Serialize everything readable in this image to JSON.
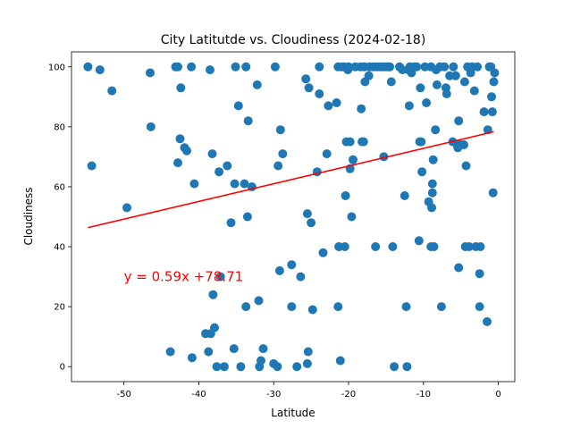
{
  "chart_data": {
    "type": "scatter",
    "title": "City Latitutde vs. Cloudiness (2024-02-18)",
    "xlabel": "Latitude",
    "ylabel": "Cloudiness",
    "xlim": [
      -57,
      2.2
    ],
    "ylim": [
      -5,
      105
    ],
    "xticks": [
      -50,
      -40,
      -30,
      -20,
      -10,
      0
    ],
    "yticks": [
      0,
      20,
      40,
      60,
      80,
      100
    ],
    "grid": false,
    "point_color": "#1f77b4",
    "regression": {
      "equation": "y = 0.59x +78.71",
      "slope": 0.59,
      "intercept": 78.71,
      "x_range": [
        -54.8,
        -0.6
      ],
      "color": "#ff0000",
      "label_pos": [
        -50,
        30
      ]
    },
    "points": [
      [
        -54.8,
        100
      ],
      [
        -54.3,
        67
      ],
      [
        -53.2,
        99
      ],
      [
        -51.6,
        92
      ],
      [
        -49.6,
        53
      ],
      [
        -46.5,
        98
      ],
      [
        -46.4,
        80
      ],
      [
        -43.8,
        5
      ],
      [
        -43.1,
        100
      ],
      [
        -42.8,
        68
      ],
      [
        -42.8,
        100
      ],
      [
        -42.5,
        76
      ],
      [
        -42.4,
        93
      ],
      [
        -41.9,
        73
      ],
      [
        -41.6,
        72
      ],
      [
        -41.0,
        100
      ],
      [
        -40.9,
        3
      ],
      [
        -40.6,
        61
      ],
      [
        -39.1,
        11
      ],
      [
        -38.7,
        5
      ],
      [
        -38.5,
        99
      ],
      [
        -38.4,
        11
      ],
      [
        -38.2,
        71
      ],
      [
        -38.1,
        24
      ],
      [
        -37.9,
        13
      ],
      [
        -37.6,
        0
      ],
      [
        -37.3,
        65
      ],
      [
        -37.1,
        30
      ],
      [
        -36.6,
        0
      ],
      [
        -36.2,
        67
      ],
      [
        -35.7,
        48
      ],
      [
        -35.3,
        6
      ],
      [
        -35.2,
        61
      ],
      [
        -35.1,
        100
      ],
      [
        -34.7,
        87
      ],
      [
        -34.4,
        0
      ],
      [
        -33.9,
        61
      ],
      [
        -33.7,
        100
      ],
      [
        -33.7,
        20
      ],
      [
        -33.5,
        50
      ],
      [
        -33.4,
        82
      ],
      [
        -32.9,
        60
      ],
      [
        -32.2,
        94
      ],
      [
        -32.0,
        22
      ],
      [
        -31.9,
        0
      ],
      [
        -31.7,
        2
      ],
      [
        -31.4,
        6
      ],
      [
        -30.0,
        1
      ],
      [
        -29.8,
        100
      ],
      [
        -29.5,
        0
      ],
      [
        -29.4,
        67
      ],
      [
        -29.2,
        32
      ],
      [
        -29.1,
        79
      ],
      [
        -28.8,
        71
      ],
      [
        -27.6,
        20
      ],
      [
        -27.6,
        34
      ],
      [
        -26.9,
        0
      ],
      [
        -26.4,
        30
      ],
      [
        -25.7,
        96
      ],
      [
        -25.5,
        51
      ],
      [
        -25.5,
        1
      ],
      [
        -25.4,
        5
      ],
      [
        -25.3,
        93
      ],
      [
        -25.0,
        48
      ],
      [
        -24.8,
        19
      ],
      [
        -24.2,
        65
      ],
      [
        -23.9,
        91
      ],
      [
        -23.9,
        100
      ],
      [
        -23.4,
        38
      ],
      [
        -22.9,
        71
      ],
      [
        -22.7,
        87
      ],
      [
        -21.6,
        88
      ],
      [
        -21.4,
        20
      ],
      [
        -21.4,
        100
      ],
      [
        -21.3,
        40
      ],
      [
        -21.1,
        2
      ],
      [
        -20.9,
        100
      ],
      [
        -20.6,
        100
      ],
      [
        -20.5,
        40
      ],
      [
        -20.4,
        57
      ],
      [
        -20.3,
        75
      ],
      [
        -20.1,
        99
      ],
      [
        -20.0,
        100
      ],
      [
        -19.8,
        75
      ],
      [
        -19.8,
        66
      ],
      [
        -19.6,
        50
      ],
      [
        -19.4,
        69
      ],
      [
        -19.1,
        100
      ],
      [
        -18.4,
        100
      ],
      [
        -18.3,
        86
      ],
      [
        -18.2,
        75
      ],
      [
        -18.0,
        75
      ],
      [
        -17.9,
        100
      ],
      [
        -17.8,
        95
      ],
      [
        -17.3,
        97
      ],
      [
        -17.2,
        100
      ],
      [
        -16.7,
        100
      ],
      [
        -16.4,
        40
      ],
      [
        -16.2,
        100
      ],
      [
        -15.7,
        100
      ],
      [
        -15.4,
        100
      ],
      [
        -15.3,
        70
      ],
      [
        -15.1,
        100
      ],
      [
        -14.8,
        100
      ],
      [
        -14.5,
        100
      ],
      [
        -14.3,
        95
      ],
      [
        -14.1,
        40
      ],
      [
        -13.9,
        0
      ],
      [
        -13.2,
        100
      ],
      [
        -12.8,
        99
      ],
      [
        -12.5,
        57
      ],
      [
        -12.3,
        20
      ],
      [
        -12.2,
        0
      ],
      [
        -12.0,
        99
      ],
      [
        -11.9,
        87
      ],
      [
        -11.8,
        100
      ],
      [
        -11.6,
        98
      ],
      [
        -11.2,
        100
      ],
      [
        -10.9,
        100
      ],
      [
        -10.6,
        42
      ],
      [
        -10.5,
        75
      ],
      [
        -10.4,
        93
      ],
      [
        -10.3,
        75
      ],
      [
        -10.2,
        65
      ],
      [
        -9.8,
        100
      ],
      [
        -9.6,
        88
      ],
      [
        -9.3,
        55
      ],
      [
        -9.0,
        100
      ],
      [
        -9.0,
        40
      ],
      [
        -8.9,
        53
      ],
      [
        -8.8,
        58
      ],
      [
        -8.8,
        61
      ],
      [
        -8.7,
        69
      ],
      [
        -8.6,
        40
      ],
      [
        -8.4,
        79
      ],
      [
        -8.3,
        99
      ],
      [
        -8.2,
        94
      ],
      [
        -7.8,
        100
      ],
      [
        -7.6,
        20
      ],
      [
        -7.2,
        100
      ],
      [
        -7.0,
        93
      ],
      [
        -6.9,
        91
      ],
      [
        -6.5,
        97
      ],
      [
        -6.1,
        75
      ],
      [
        -6.0,
        100
      ],
      [
        -5.7,
        97
      ],
      [
        -5.5,
        74
      ],
      [
        -5.4,
        73
      ],
      [
        -5.3,
        33
      ],
      [
        -5.3,
        82
      ],
      [
        -5.0,
        74
      ],
      [
        -4.6,
        74
      ],
      [
        -4.5,
        95
      ],
      [
        -4.4,
        40
      ],
      [
        -4.3,
        67
      ],
      [
        -4.1,
        100
      ],
      [
        -3.9,
        40
      ],
      [
        -3.7,
        98
      ],
      [
        -3.5,
        100
      ],
      [
        -3.2,
        92
      ],
      [
        -3.0,
        40
      ],
      [
        -2.8,
        100
      ],
      [
        -2.5,
        20
      ],
      [
        -2.5,
        31
      ],
      [
        -2.4,
        40
      ],
      [
        -1.9,
        85
      ],
      [
        -1.5,
        15
      ],
      [
        -1.4,
        79
      ],
      [
        -1.2,
        100
      ],
      [
        -1.0,
        100
      ],
      [
        -0.9,
        90
      ],
      [
        -0.8,
        85
      ],
      [
        -0.7,
        58
      ],
      [
        -0.6,
        95
      ],
      [
        -0.5,
        98
      ]
    ]
  }
}
